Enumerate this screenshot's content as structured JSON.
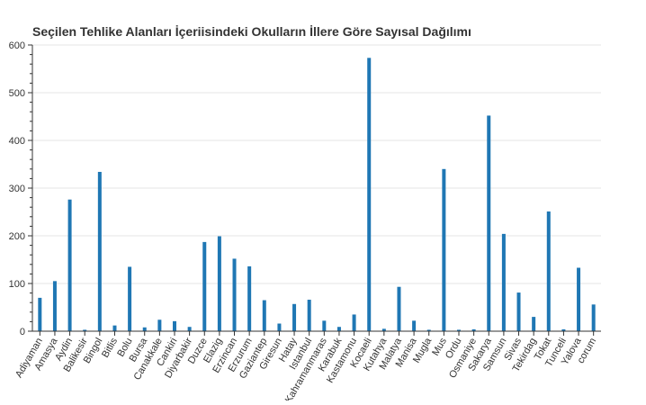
{
  "chart_data": {
    "type": "bar",
    "title": "Seçilen Tehlike Alanları İçeriisindeki Okulların İllere Göre Sayısal Dağılımı",
    "xlabel": "",
    "ylabel": "",
    "ylim": [
      0,
      600
    ],
    "yticks": [
      0,
      100,
      200,
      300,
      400,
      500,
      600
    ],
    "grid": true,
    "legend": "none",
    "bar_color": "#1f77b4",
    "categories": [
      "Adiyaman",
      "Amasya",
      "Aydin",
      "Balikesir",
      "Bingol",
      "Bitlis",
      "Bolu",
      "Bursa",
      "Canakkale",
      "Cankiri",
      "Diyarbakir",
      "Duzce",
      "Elazig",
      "Erzincan",
      "Erzurum",
      "Gaziantep",
      "Giresun",
      "Hatay",
      "Istanbul",
      "Kahramanmaras",
      "Karabuk",
      "Kastamonu",
      "Kocaeli",
      "Kutahya",
      "Malatya",
      "Manisa",
      "Mugla",
      "Mus",
      "Ordu",
      "Osmaniye",
      "Sakarya",
      "Samsun",
      "Sivas",
      "Tekirdag",
      "Tokat",
      "Tunceli",
      "Yalova",
      "corum"
    ],
    "values": [
      70,
      105,
      276,
      3,
      334,
      12,
      135,
      8,
      24,
      21,
      9,
      187,
      199,
      152,
      136,
      65,
      16,
      57,
      66,
      22,
      9,
      35,
      573,
      5,
      93,
      22,
      3,
      340,
      3,
      4,
      452,
      204,
      81,
      30,
      251,
      4,
      133,
      56
    ]
  }
}
